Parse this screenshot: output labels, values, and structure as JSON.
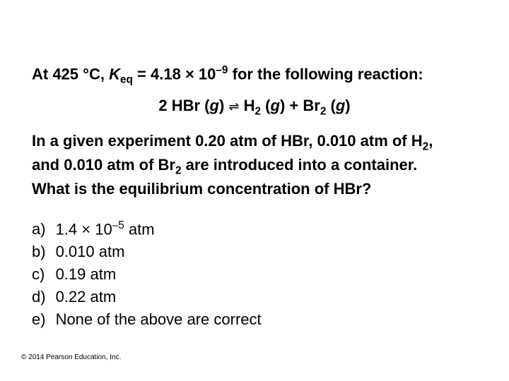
{
  "slide": {
    "background_color": "#ffffff",
    "text_color": "#000000",
    "font_family": "Arial",
    "body_fontsize_pt": 22,
    "body_fontweight": "bold",
    "options_fontweight": "normal",
    "footer_fontsize_pt": 10
  },
  "intro": {
    "prefix": "At 425 ",
    "degree": "°C, ",
    "k_var": "K",
    "k_sub": "eq",
    "equals": " = 4.18 × 10",
    "exp": "–9",
    "suffix": " for the following reaction:"
  },
  "equation": {
    "lhs_coeff": "2 HBr (",
    "g1": "g",
    "close1": ") ",
    "arrow": "⇌",
    "mid": " H",
    "h2sub": "2",
    "g2open": " (",
    "g2": "g",
    "g2close": ") + Br",
    "br2sub": "2",
    "g3open": " (",
    "g3": "g",
    "g3close": ")"
  },
  "question": {
    "l1a": "In a given experiment 0.20 atm of HBr, 0.010 atm of H",
    "l1sub": "2",
    "l1b": ",",
    "l2a": "and 0.010 atm of Br",
    "l2sub": "2",
    "l2b": " are introduced into a container.",
    "l3": "What is the equilibrium concentration of HBr?"
  },
  "options": {
    "a_label": "a)",
    "a_pre": "1.4 × 10",
    "a_exp": "–5",
    "a_post": " atm",
    "b_label": "b)",
    "b_val": "0.010 atm",
    "c_label": "c)",
    "c_val": "0.19 atm",
    "d_label": "d)",
    "d_val": "0.22 atm",
    "e_label": "e)",
    "e_val": "None of the above are correct"
  },
  "footer": "© 2014 Pearson Education, Inc."
}
